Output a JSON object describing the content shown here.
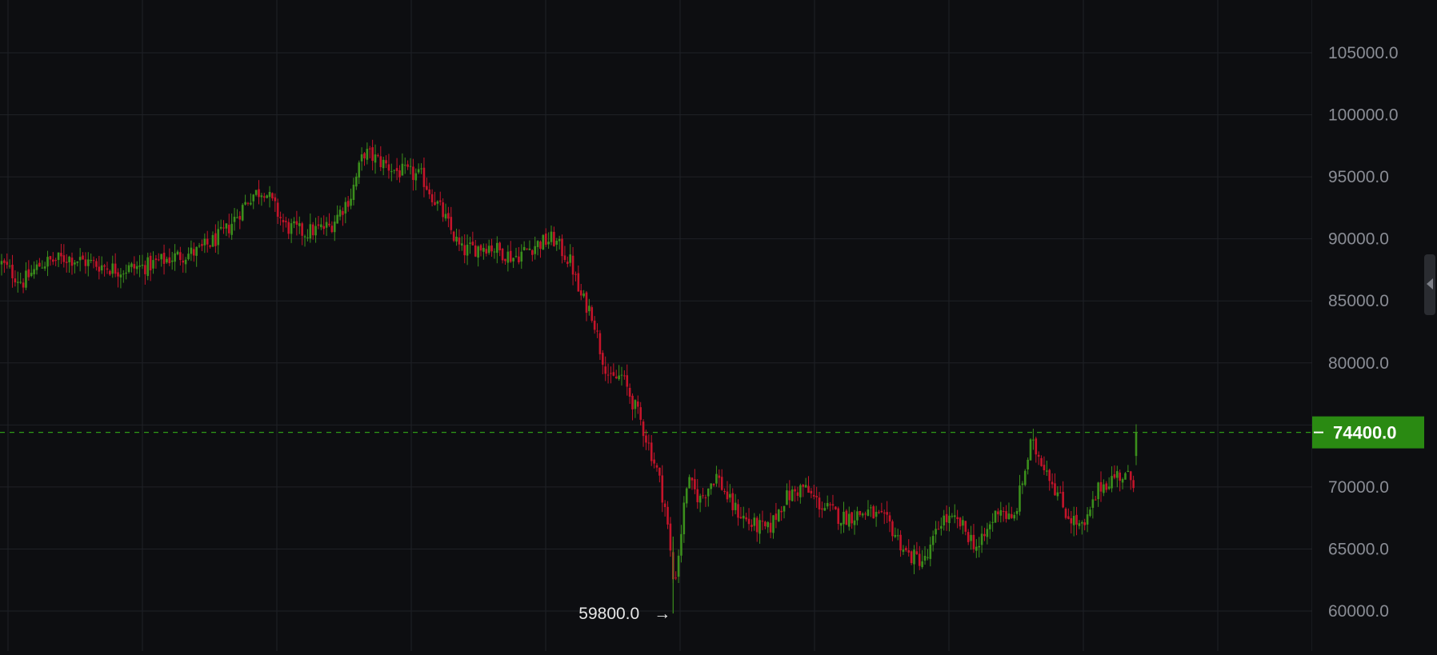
{
  "colors": {
    "background": "#0d0e11",
    "grid": "#1f2126",
    "up": "#3b8f1c",
    "down": "#c4142a",
    "last_price_bg": "#2a8a12",
    "last_price_line": "#2f9a17",
    "tick_text": "#8a8d95",
    "annotation_text": "#e6e6e6"
  },
  "price_axis": {
    "side": "right",
    "ticks": [
      "105000.0",
      "100000.0",
      "95000.0",
      "90000.0",
      "85000.0",
      "80000.0",
      "70000.0",
      "65000.0",
      "60000.0"
    ]
  },
  "last_price": {
    "label": "74400.0",
    "value": 74400
  },
  "low_annotation": {
    "label": "59800.0",
    "arrow": "→",
    "value": 59800
  },
  "chart_data": {
    "type": "candlestick",
    "title": "",
    "xlabel": "",
    "ylabel": "",
    "ylim": [
      57000,
      109000
    ],
    "grid": true,
    "candles": 420,
    "close_path": [
      [
        0,
        88000
      ],
      [
        8,
        86500
      ],
      [
        15,
        88000
      ],
      [
        25,
        88500
      ],
      [
        35,
        88000
      ],
      [
        45,
        87500
      ],
      [
        55,
        87800
      ],
      [
        65,
        88500
      ],
      [
        75,
        89000
      ],
      [
        85,
        90500
      ],
      [
        95,
        93500
      ],
      [
        100,
        94000
      ],
      [
        108,
        91000
      ],
      [
        115,
        90500
      ],
      [
        125,
        91000
      ],
      [
        133,
        93500
      ],
      [
        138,
        97000
      ],
      [
        142,
        96500
      ],
      [
        150,
        95500
      ],
      [
        160,
        95000
      ],
      [
        168,
        92000
      ],
      [
        175,
        89000
      ],
      [
        185,
        89500
      ],
      [
        195,
        88500
      ],
      [
        203,
        89500
      ],
      [
        210,
        90000
      ],
      [
        217,
        88000
      ],
      [
        220,
        85500
      ],
      [
        225,
        84000
      ],
      [
        228,
        81000
      ],
      [
        232,
        78500
      ],
      [
        236,
        79000
      ],
      [
        240,
        77000
      ],
      [
        243,
        75500
      ],
      [
        247,
        73000
      ],
      [
        250,
        71000
      ],
      [
        253,
        68000
      ],
      [
        256,
        62000
      ],
      [
        258,
        65000
      ],
      [
        261,
        70500
      ],
      [
        266,
        69000
      ],
      [
        272,
        71000
      ],
      [
        278,
        68500
      ],
      [
        285,
        67000
      ],
      [
        292,
        66500
      ],
      [
        298,
        69000
      ],
      [
        305,
        70000
      ],
      [
        312,
        68500
      ],
      [
        320,
        67500
      ],
      [
        330,
        68000
      ],
      [
        338,
        67000
      ],
      [
        345,
        64500
      ],
      [
        352,
        64000
      ],
      [
        358,
        67500
      ],
      [
        365,
        67000
      ],
      [
        372,
        65000
      ],
      [
        380,
        68500
      ],
      [
        385,
        67000
      ],
      [
        392,
        73500
      ],
      [
        398,
        71500
      ],
      [
        405,
        68000
      ],
      [
        412,
        66500
      ],
      [
        418,
        70000
      ],
      [
        425,
        71000
      ],
      [
        432,
        70500
      ]
    ]
  }
}
